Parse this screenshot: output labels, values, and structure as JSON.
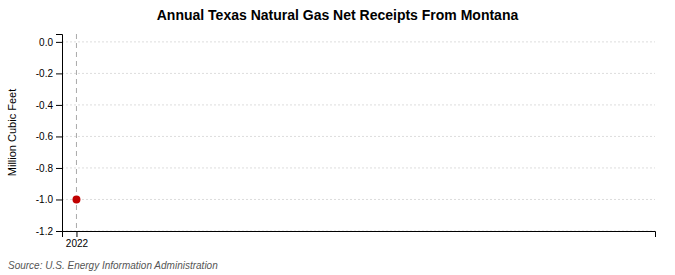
{
  "chart_data": {
    "type": "scatter",
    "title": "Annual Texas Natural Gas Net Receipts From Montana",
    "ylabel": "Million Cubic Feet",
    "annotations": [
      "Source: U.S. Energy Information Administration"
    ],
    "x": [
      2022
    ],
    "values": [
      -1.0
    ],
    "color": "#c00000",
    "marker": "circle",
    "xlim": [
      2021.8,
      2030.0
    ],
    "ylim": [
      -1.2,
      0.05
    ],
    "xticks": [
      2022
    ],
    "yticks": [
      {
        "value": 0.0,
        "label": "0.0"
      },
      -0.2,
      -0.4,
      -0.6,
      -0.8,
      {
        "value": -1.0,
        "label": "-1.0"
      },
      -1.2
    ],
    "grid": "y"
  }
}
